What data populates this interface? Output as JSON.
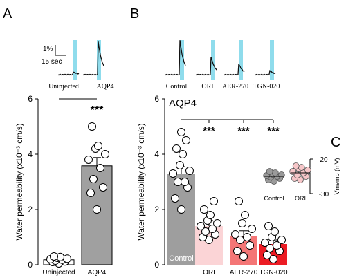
{
  "panels": {
    "a": "A",
    "b": "B",
    "c": "C"
  },
  "scale_bar": {
    "amplitude": "1%",
    "time": "15 sec"
  },
  "traces_a": [
    "Uninjected",
    "AQP4"
  ],
  "traces_b": [
    "Control",
    "ORI",
    "AER-270",
    "TGN-020"
  ],
  "colors": {
    "light_stimulus": "#8fdcec",
    "aqp4_bar": "#a0a0a0",
    "uninjected_bar": "#ffffff",
    "control_bar": "#9e9e9e",
    "ori_bar": "#fbd4d6",
    "aer_bar": "#f47676",
    "tgn_bar": "#ec1c24",
    "control_dot_c": "#9a9a9a",
    "ori_dot_c": "#f6c6c8"
  },
  "chart_data": [
    {
      "type": "bar",
      "panel": "A",
      "title": "",
      "ylabel": "Water permeability (x10⁻³ cm/s)",
      "ylim": [
        0,
        6
      ],
      "yticks": [
        0,
        2,
        4,
        6
      ],
      "categories": [
        "Uninjected",
        "AQP4"
      ],
      "values": [
        0.18,
        3.58
      ],
      "sem": [
        0.05,
        0.3
      ],
      "points": [
        [
          0.05,
          0.1,
          0.12,
          0.15,
          0.18,
          0.2,
          0.22,
          0.25,
          0.28,
          0.3
        ],
        [
          2.0,
          2.6,
          2.8,
          3.1,
          3.5,
          3.8,
          4.0,
          4.2,
          4.3,
          5.0
        ]
      ],
      "significance": "***"
    },
    {
      "type": "bar",
      "panel": "B",
      "title": "AQP4",
      "ylabel": "Water permeability (x10⁻³ cm/s)",
      "ylim": [
        0,
        6
      ],
      "yticks": [
        0,
        2,
        4,
        6
      ],
      "categories": [
        "Control",
        "ORI",
        "AER-270",
        "TGN-020"
      ],
      "values": [
        3.3,
        1.4,
        1.05,
        0.75
      ],
      "sem": [
        0.25,
        0.2,
        0.18,
        0.15
      ],
      "points": [
        [
          2.0,
          2.4,
          2.8,
          3.0,
          3.0,
          3.3,
          3.4,
          3.6,
          4.0,
          4.2,
          4.5,
          4.8
        ],
        [
          0.9,
          1.0,
          1.1,
          1.2,
          1.3,
          1.4,
          1.5,
          1.6,
          1.8,
          2.0,
          2.3
        ],
        [
          0.3,
          0.5,
          0.7,
          0.9,
          1.0,
          1.1,
          1.3,
          1.5,
          1.8,
          2.3
        ],
        [
          0.2,
          0.35,
          0.5,
          0.6,
          0.7,
          0.8,
          0.9,
          1.0,
          1.2,
          1.4
        ]
      ],
      "significance": [
        "***",
        "***",
        "***"
      ]
    },
    {
      "type": "scatter",
      "panel": "C",
      "title": "",
      "ylabel": "Vmemb (mV)",
      "ylim": [
        -30,
        20
      ],
      "yticks": [
        20,
        -30
      ],
      "categories": [
        "Control",
        "ORI"
      ],
      "points": [
        [
          -12,
          -10,
          -8,
          -6,
          -5,
          -4,
          -3,
          -2,
          0,
          2
        ],
        [
          -10,
          -8,
          -5,
          -3,
          0,
          2,
          4,
          6,
          8,
          10
        ]
      ],
      "means": [
        -5,
        0
      ]
    }
  ]
}
